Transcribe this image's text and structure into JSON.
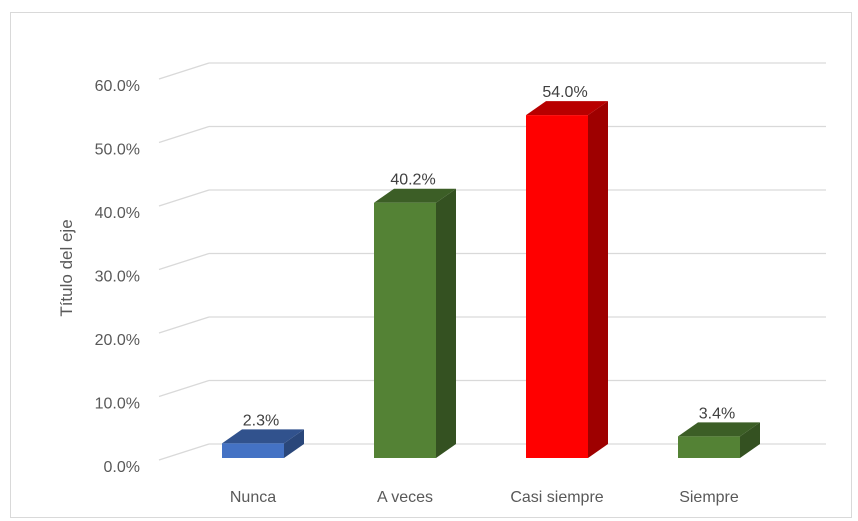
{
  "chart_data": {
    "type": "bar",
    "style": "3d-column",
    "title": "",
    "xlabel": "",
    "ylabel": "Título del eje",
    "ylim": [
      0,
      60
    ],
    "yticks": [
      "0.0%",
      "10.0%",
      "20.0%",
      "30.0%",
      "40.0%",
      "50.0%",
      "60.0%"
    ],
    "categories": [
      "Nunca",
      "A veces",
      "Casi siempre",
      "Siempre"
    ],
    "values": [
      2.3,
      40.2,
      54.0,
      3.4
    ],
    "data_labels": [
      "2.3%",
      "40.2%",
      "54.0%",
      "3.4%"
    ],
    "colors": [
      "#4472C4",
      "#548235",
      "#FF0000",
      "#548235"
    ],
    "grid": true,
    "legend": "none"
  }
}
